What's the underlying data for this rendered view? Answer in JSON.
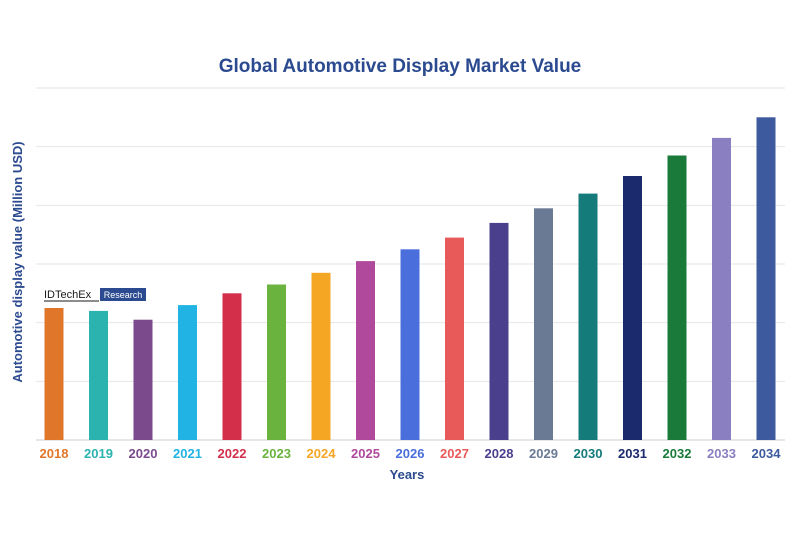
{
  "chart_data": {
    "type": "bar",
    "title": "Global Automotive Display Market Value",
    "xlabel": "Years",
    "ylabel": "Automotive display value (Million USD)",
    "ylim": [
      0,
      60
    ],
    "grid": true,
    "categories": [
      "2018",
      "2019",
      "2020",
      "2021",
      "2022",
      "2023",
      "2024",
      "2025",
      "2026",
      "2027",
      "2028",
      "2029",
      "2030",
      "2031",
      "2032",
      "2033",
      "2034"
    ],
    "values": [
      22.5,
      22.0,
      20.5,
      23.0,
      25.0,
      26.5,
      28.5,
      30.5,
      32.5,
      34.5,
      37.0,
      39.5,
      42.0,
      45.0,
      48.5,
      51.5,
      55.0
    ],
    "colors": [
      "#e0762a",
      "#2bb3b0",
      "#7b4a8c",
      "#20b3e3",
      "#d32f4b",
      "#6ab33f",
      "#f5a623",
      "#b0499c",
      "#4a6fdc",
      "#e85a5a",
      "#4a3f8c",
      "#6b7a94",
      "#157a7a",
      "#1a2a6c",
      "#1a7a3a",
      "#8a7fc0",
      "#3d5a9e"
    ]
  },
  "brand": {
    "name": "IDTechEx",
    "tag": "Research"
  },
  "colors": {
    "title": "#2b4a8f",
    "grid": "#e6e6e6",
    "brand_tag_bg": "#2b4a8f"
  }
}
